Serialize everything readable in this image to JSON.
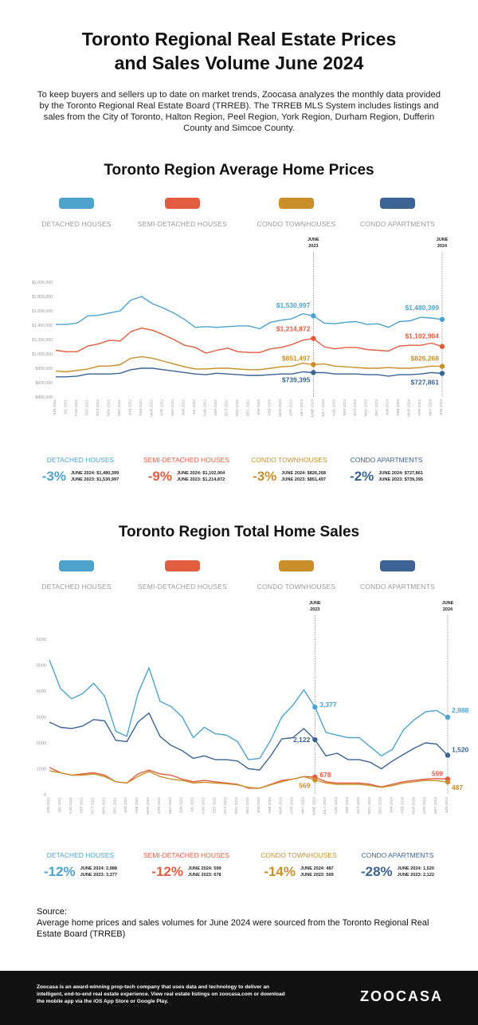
{
  "header": {
    "title_lines": [
      "Toronto Regional Real Estate Prices",
      "and Sales Volume June 2024"
    ],
    "intro": "To keep buyers and sellers up to date on market trends, Zoocasa analyzes the monthly data provided by the Toronto Regional Real Estate Board (TRREB). The TRREB MLS System includes listings and sales from the City of Toronto, Halton Region, Peel Region, York Region, Durham Region, Dufferin County and Simcoe County."
  },
  "colors": {
    "detached": "#4ea3cc",
    "semi": "#e25c3f",
    "condo_town": "#c88f2a",
    "condo_apt": "#3b6394"
  },
  "legend": [
    "DETACHED HOUSES",
    "SEMI-DETACHED HOUSES",
    "CONDO TOWNHOUSES",
    "CONDO APARTMENTS"
  ],
  "chart_data": [
    {
      "type": "line",
      "title": "Toronto Region Average Home Prices",
      "x": [
        "JUN 2021",
        "JUL 2021",
        "AUG 2021",
        "SEP 2021",
        "OCT 2021",
        "NOV 2021",
        "DEC 2021",
        "JAN 2022",
        "FEB 2022",
        "MAR 2022",
        "APR 2022",
        "MAY 2022",
        "JUN 2022",
        "JUL 2022",
        "AUG 2022",
        "SEP 2022",
        "OCT 2022",
        "NOV 2022",
        "DEC 2022",
        "JAN 2023",
        "FEB 2023",
        "MAR 2023",
        "APR 2023",
        "MAY 2023",
        "JUNE 2023",
        "JULY 2023",
        "AUG 2023",
        "SEP 2023",
        "OCT 2023",
        "NOV 2023",
        "DEC 2023",
        "JAN 2024",
        "FEB 2024",
        "MAR 2024",
        "APR 2024",
        "MAY 2024",
        "JUN 2024"
      ],
      "y_ticks": [
        "$400,000",
        "$600,000",
        "$800,000",
        "$1,000,000",
        "$1,200,000",
        "$1,400,000",
        "$1,600,000",
        "$1,800,000",
        "$2,000,000"
      ],
      "ylim": [
        400000,
        2000000
      ],
      "markers": [
        "JUNE 2023",
        "JUNE 2024"
      ],
      "series": [
        {
          "name": "DETACHED HOUSES",
          "values": [
            1410000,
            1410000,
            1430000,
            1530000,
            1540000,
            1570000,
            1600000,
            1750000,
            1800000,
            1700000,
            1640000,
            1570000,
            1480000,
            1370000,
            1380000,
            1370000,
            1380000,
            1390000,
            1390000,
            1350000,
            1440000,
            1470000,
            1490000,
            1560000,
            1530997,
            1430000,
            1420000,
            1440000,
            1450000,
            1410000,
            1420000,
            1370000,
            1450000,
            1460000,
            1510000,
            1500000,
            1480399
          ]
        },
        {
          "name": "SEMI-DETACHED HOUSES",
          "values": [
            1050000,
            1030000,
            1030000,
            1110000,
            1140000,
            1190000,
            1180000,
            1310000,
            1360000,
            1330000,
            1270000,
            1200000,
            1120000,
            1090000,
            1010000,
            1050000,
            1080000,
            1030000,
            1020000,
            1020000,
            1070000,
            1090000,
            1130000,
            1190000,
            1214872,
            1100000,
            1070000,
            1090000,
            1090000,
            1060000,
            1050000,
            1040000,
            1110000,
            1120000,
            1120000,
            1150000,
            1102904
          ]
        },
        {
          "name": "CONDO TOWNHOUSES",
          "values": [
            760000,
            750000,
            770000,
            790000,
            830000,
            830000,
            850000,
            940000,
            960000,
            940000,
            900000,
            860000,
            820000,
            790000,
            790000,
            800000,
            800000,
            790000,
            780000,
            780000,
            800000,
            820000,
            830000,
            870000,
            851497,
            860000,
            830000,
            820000,
            810000,
            800000,
            800000,
            810000,
            800000,
            800000,
            810000,
            830000,
            826268
          ]
        },
        {
          "name": "CONDO APARTMENTS",
          "values": [
            680000,
            680000,
            690000,
            720000,
            720000,
            720000,
            730000,
            780000,
            800000,
            800000,
            780000,
            760000,
            740000,
            720000,
            710000,
            730000,
            720000,
            710000,
            700000,
            700000,
            710000,
            720000,
            720000,
            750000,
            739395,
            740000,
            720000,
            720000,
            720000,
            710000,
            710000,
            690000,
            710000,
            710000,
            720000,
            740000,
            727861
          ]
        }
      ],
      "labels": {
        "detached_2023": "$1,530,997",
        "detached_2024": "$1,480,399",
        "semi_2023": "$1,214,872",
        "semi_2024": "$1,102,904",
        "condo_town_2023": "$851,497",
        "condo_town_2024": "$826,268",
        "condo_apt_2023": "$739,395",
        "condo_apt_2024": "$727,861"
      }
    },
    {
      "type": "line",
      "title": "Toronto Region Total Home Sales",
      "x": [
        "JUN 2021",
        "JUL 2021",
        "AUG 2021",
        "SEP 2021",
        "OCT 2021",
        "NOV 2021",
        "DEC 2021",
        "JAN 2022",
        "FEB 2022",
        "MAR 2022",
        "APR 2022",
        "MAY 2022",
        "JUN 2022",
        "JUL 2022",
        "AUG 2022",
        "SEP 2022",
        "OCT 2022",
        "NOV 2022",
        "DEC 2022",
        "JAN 2023",
        "FEB 2023",
        "MAR 2023",
        "APR 2023",
        "MAY 2023",
        "JUNE 2023",
        "JULY 2023",
        "AUG 2023",
        "SEP 2023",
        "OCT 2023",
        "NOV 2023",
        "DEC 2023",
        "JAN 2024",
        "FEB 2024",
        "MAR 2024",
        "APR 2024",
        "MAY 2024",
        "JUN 2024"
      ],
      "y_ticks": [
        "0",
        "1000",
        "2000",
        "3000",
        "4000",
        "5000",
        "6000"
      ],
      "ylim": [
        0,
        6000
      ],
      "markers": [
        "JUNE 2023",
        "JUNE 2024"
      ],
      "series": [
        {
          "name": "DETACHED HOUSES",
          "values": [
            5200,
            4100,
            3700,
            3900,
            4300,
            3800,
            2450,
            2250,
            3900,
            4900,
            3600,
            3400,
            3000,
            2200,
            2600,
            2350,
            2300,
            2050,
            1350,
            1400,
            2100,
            3000,
            3450,
            4050,
            3377,
            2400,
            2300,
            2200,
            2200,
            1850,
            1500,
            1750,
            2500,
            2900,
            3200,
            3250,
            2988
          ]
        },
        {
          "name": "SEMI-DETACHED HOUSES",
          "values": [
            1050,
            850,
            750,
            800,
            850,
            750,
            500,
            450,
            800,
            950,
            800,
            750,
            600,
            500,
            550,
            500,
            450,
            400,
            250,
            250,
            400,
            550,
            600,
            700,
            678,
            500,
            450,
            450,
            450,
            400,
            300,
            400,
            500,
            550,
            600,
            620,
            599
          ]
        },
        {
          "name": "CONDO TOWNHOUSES",
          "values": [
            920,
            850,
            750,
            750,
            800,
            700,
            500,
            450,
            700,
            900,
            700,
            600,
            550,
            450,
            480,
            450,
            420,
            380,
            280,
            250,
            380,
            500,
            600,
            700,
            569,
            450,
            400,
            400,
            400,
            350,
            280,
            350,
            450,
            500,
            550,
            540,
            487
          ]
        },
        {
          "name": "CONDO APARTMENTS",
          "values": [
            2800,
            2600,
            2550,
            2650,
            2900,
            2850,
            2100,
            2050,
            2800,
            3150,
            2250,
            1900,
            1700,
            1400,
            1500,
            1350,
            1350,
            1300,
            1000,
            950,
            1500,
            2150,
            2200,
            2550,
            2122,
            1500,
            1600,
            1350,
            1350,
            1250,
            1000,
            1300,
            1550,
            1800,
            2000,
            1950,
            1520
          ]
        }
      ],
      "labels": {
        "detached_2023": "3,377",
        "detached_2024": "2,988",
        "semi_2023": "678",
        "semi_2024": "599",
        "condo_town_2023": "569",
        "condo_town_2024": "487",
        "condo_apt_2023": "2,122",
        "condo_apt_2024": "1,520"
      }
    }
  ],
  "sections": {
    "prices_title": "Toronto Region Average Home Prices",
    "sales_title": "Toronto Region Total Home Sales",
    "marker_2023": [
      "JUNE",
      "2023"
    ],
    "marker_2024": [
      "JUNE",
      "2024"
    ]
  },
  "price_stats": [
    {
      "name": "DETACHED HOUSES",
      "pct": "-3%",
      "l1": "JUNE 2024: $1,480,399",
      "l2": "JUNE 2023: $1,530,997"
    },
    {
      "name": "SEMI-DETACHED HOUSES",
      "pct": "-9%",
      "l1": "JUNE 2024: $1,102,904",
      "l2": "JUNE 2023: $1,214,872"
    },
    {
      "name": "CONDO TOWNHOUSES",
      "pct": "-3%",
      "l1": "JUNE 2024: $826,268",
      "l2": "JUNE 2023: $851,497"
    },
    {
      "name": "CONDO APARTMENTS",
      "pct": "-2%",
      "l1": "JUNE 2024: $727,861",
      "l2": "JUNE 2023: $739,395"
    }
  ],
  "sales_stats": [
    {
      "name": "DETACHED HOUSES",
      "pct": "-12%",
      "l1": "JUNE 2024: 2,988",
      "l2": "JUNE 2023: 3,377"
    },
    {
      "name": "SEMI-DETACHED HOUSES",
      "pct": "-12%",
      "l1": "JUNE 2024: 599",
      "l2": "JUNE 2023: 678"
    },
    {
      "name": "CONDO TOWNHOUSES",
      "pct": "-14%",
      "l1": "JUNE 2024: 487",
      "l2": "JUNE 2023: 569"
    },
    {
      "name": "CONDO APARTMENTS",
      "pct": "-28%",
      "l1": "JUNE 2024: 1,520",
      "l2": "JUNE 2023: 2,122"
    }
  ],
  "source": {
    "heading": "Source:",
    "text": "Average home prices and sales volumes for June 2024 were sourced from the Toronto Regional Real Estate Board (TRREB)"
  },
  "footer": {
    "text": "Zoocasa is an award-winning prop-tech company that uses data and technology to deliver an intelligent, end-to-end real estate experience. View real estate listings on zoocasa.com or download the mobile app via the iOS App Store or Google Play.",
    "logo": "ZOOCASA"
  }
}
